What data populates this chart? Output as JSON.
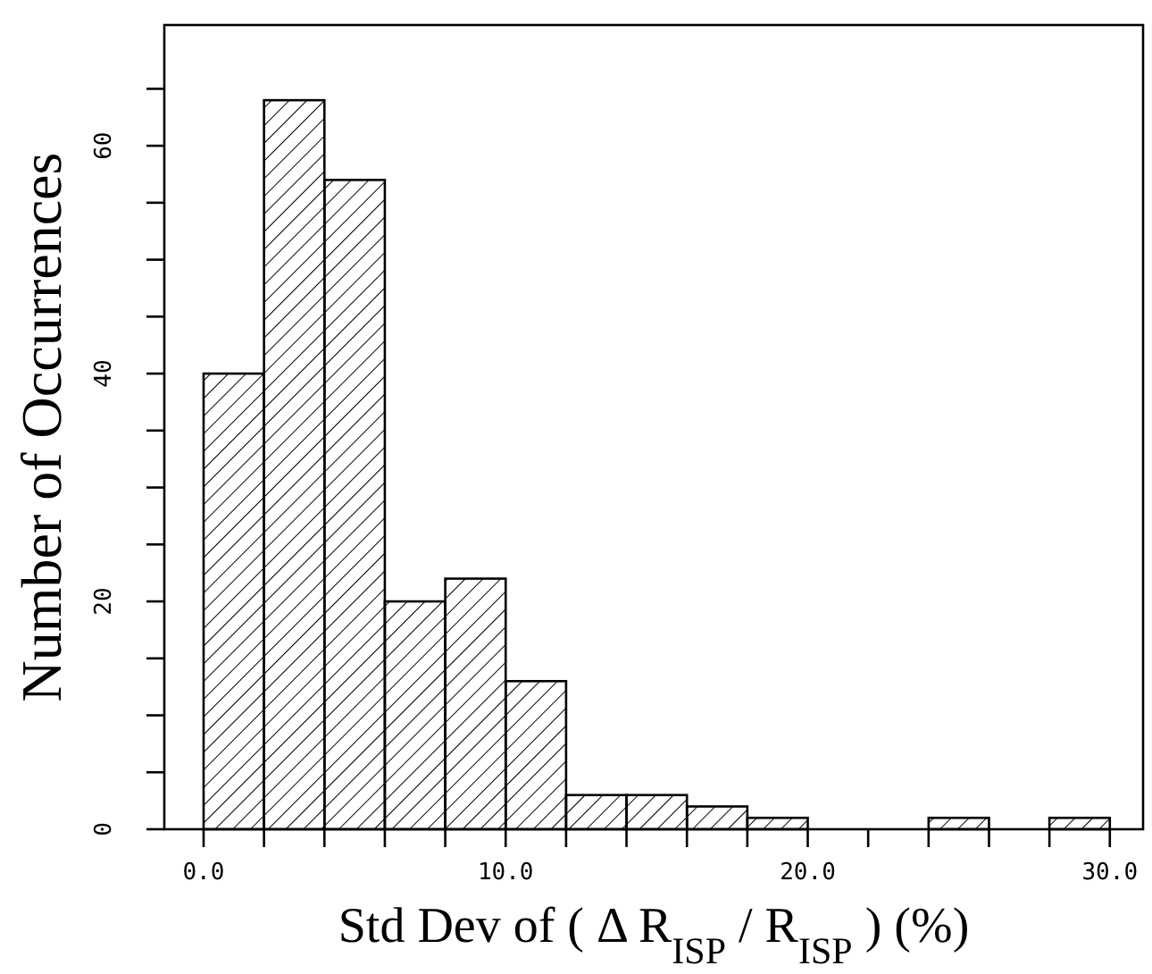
{
  "chart_data": {
    "type": "histogram",
    "xlabel": "Std Dev of ( Δ R$_{ISP}$ / R$_{ISP}$ )  (%)",
    "ylabel": "Number of Occurrences",
    "bins": [
      0,
      2,
      4,
      6,
      8,
      10,
      12,
      14,
      16,
      18,
      20,
      22,
      24,
      26,
      28,
      30
    ],
    "values": [
      40,
      64,
      57,
      20,
      22,
      13,
      3,
      3,
      2,
      1,
      0,
      0,
      1,
      0,
      1
    ],
    "color": "#000000",
    "xlim": [
      -1.3,
      31.1
    ],
    "ylim": [
      0,
      70.6
    ],
    "xticks": [
      {
        "value": 0,
        "label": "0.0"
      },
      {
        "value": 2,
        "label": null
      },
      {
        "value": 4,
        "label": null
      },
      {
        "value": 6,
        "label": null
      },
      {
        "value": 8,
        "label": null
      },
      {
        "value": 10,
        "label": "10.0"
      },
      {
        "value": 12,
        "label": null
      },
      {
        "value": 14,
        "label": null
      },
      {
        "value": 16,
        "label": null
      },
      {
        "value": 18,
        "label": null
      },
      {
        "value": 20,
        "label": "20.0"
      },
      {
        "value": 22,
        "label": null
      },
      {
        "value": 24,
        "label": null
      },
      {
        "value": 26,
        "label": null
      },
      {
        "value": 28,
        "label": null
      },
      {
        "value": 30,
        "label": "30.0"
      }
    ],
    "yticks": [
      0,
      {
        "value": 5,
        "label": null
      },
      {
        "value": 10,
        "label": null
      },
      {
        "value": 15,
        "label": null
      },
      20,
      {
        "value": 25,
        "label": null
      },
      {
        "value": 30,
        "label": null
      },
      {
        "value": 35,
        "label": null
      },
      40,
      {
        "value": 45,
        "label": null
      },
      {
        "value": 50,
        "label": null
      },
      {
        "value": 55,
        "label": null
      },
      60,
      {
        "value": 65,
        "label": null
      }
    ],
    "grid": false
  }
}
